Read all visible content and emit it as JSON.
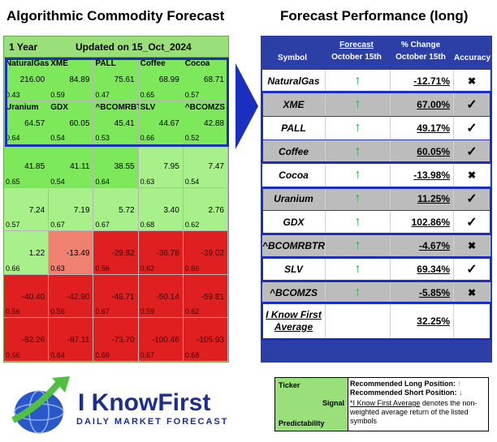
{
  "titles": {
    "left": "Algorithmic Commodity Forecast",
    "right": "Forecast Performance (long)"
  },
  "heatmap": {
    "period": "1 Year",
    "updated": "Updated on 15_Oct_2024",
    "colors": {
      "header": "#99e07a",
      "green_bright": "#7de85a",
      "green_light": "#a8f08a",
      "red": "#e02020",
      "salmon": "#f08070"
    },
    "rows": [
      [
        {
          "symbol": "NaturalGas",
          "value": "216.00",
          "predictability": "0.43",
          "color": "green_bright"
        },
        {
          "symbol": "XME",
          "value": "84.89",
          "predictability": "0.59",
          "color": "green_bright"
        },
        {
          "symbol": "PALL",
          "value": "75.61",
          "predictability": "0.47",
          "color": "green_bright"
        },
        {
          "symbol": "Coffee",
          "value": "68.99",
          "predictability": "0.65",
          "color": "green_bright"
        },
        {
          "symbol": "Cocoa",
          "value": "68.71",
          "predictability": "0.57",
          "color": "green_bright"
        }
      ],
      [
        {
          "symbol": "Uranium",
          "value": "64.57",
          "predictability": "0.64",
          "color": "green_bright"
        },
        {
          "symbol": "GDX",
          "value": "60.05",
          "predictability": "0.54",
          "color": "green_bright"
        },
        {
          "symbol": "^BCOMRBTR",
          "value": "45.41",
          "predictability": "0.53",
          "color": "green_bright"
        },
        {
          "symbol": "SLV",
          "value": "44.67",
          "predictability": "0.66",
          "color": "green_bright"
        },
        {
          "symbol": "^BCOMZS",
          "value": "42.88",
          "predictability": "0.52",
          "color": "green_bright"
        }
      ],
      [
        {
          "symbol": "",
          "value": "41.85",
          "predictability": "0.65",
          "color": "green_bright"
        },
        {
          "symbol": "",
          "value": "41.11",
          "predictability": "0.54",
          "color": "green_bright"
        },
        {
          "symbol": "",
          "value": "38.55",
          "predictability": "0.64",
          "color": "green_bright"
        },
        {
          "symbol": "",
          "value": "7.95",
          "predictability": "0.63",
          "color": "green_light"
        },
        {
          "symbol": "",
          "value": "7.47",
          "predictability": "0.54",
          "color": "green_light"
        }
      ],
      [
        {
          "symbol": "",
          "value": "7.24",
          "predictability": "0.57",
          "color": "green_light"
        },
        {
          "symbol": "",
          "value": "7.19",
          "predictability": "0.67",
          "color": "green_light"
        },
        {
          "symbol": "",
          "value": "5.72",
          "predictability": "0.67",
          "color": "green_light"
        },
        {
          "symbol": "",
          "value": "3.40",
          "predictability": "0.68",
          "color": "green_light"
        },
        {
          "symbol": "",
          "value": "2.76",
          "predictability": "0.62",
          "color": "green_light"
        }
      ],
      [
        {
          "symbol": "",
          "value": "1.22",
          "predictability": "0.66",
          "color": "green_light"
        },
        {
          "symbol": "",
          "value": "-13.49",
          "predictability": "0.63",
          "color": "salmon"
        },
        {
          "symbol": "",
          "value": "-29.82",
          "predictability": "0.56",
          "color": "red"
        },
        {
          "symbol": "",
          "value": "-36.78",
          "predictability": "0.62",
          "color": "red"
        },
        {
          "symbol": "",
          "value": "-39.02",
          "predictability": "0.66",
          "color": "red"
        }
      ],
      [
        {
          "symbol": "",
          "value": "-40.40",
          "predictability": "0.56",
          "color": "red"
        },
        {
          "symbol": "",
          "value": "-42.90",
          "predictability": "0.56",
          "color": "red"
        },
        {
          "symbol": "",
          "value": "-48.71",
          "predictability": "0.67",
          "color": "red"
        },
        {
          "symbol": "",
          "value": "-50.14",
          "predictability": "0.59",
          "color": "red"
        },
        {
          "symbol": "",
          "value": "-59.81",
          "predictability": "0.62",
          "color": "red"
        }
      ],
      [
        {
          "symbol": "",
          "value": "-82.26",
          "predictability": "0.66",
          "color": "red"
        },
        {
          "symbol": "",
          "value": "-87.11",
          "predictability": "0.64",
          "color": "red"
        },
        {
          "symbol": "",
          "value": "-73.70",
          "predictability": "0.69",
          "color": "red"
        },
        {
          "symbol": "",
          "value": "-100.46",
          "predictability": "0.67",
          "color": "red"
        },
        {
          "symbol": "",
          "value": "-105.93",
          "predictability": "0.68",
          "color": "red"
        }
      ]
    ]
  },
  "performance": {
    "headers": {
      "symbol": "Symbol",
      "forecast": "Forecast",
      "forecast_date": "October 15th",
      "change": "% Change",
      "change_date": "October 15th",
      "accuracy": "Accuracy"
    },
    "rows": [
      {
        "symbol": "NaturalGas",
        "direction": "up",
        "change": "-12.71%",
        "accurate": false
      },
      {
        "symbol": "XME",
        "direction": "up",
        "change": "67.00%",
        "accurate": true
      },
      {
        "symbol": "PALL",
        "direction": "up",
        "change": "49.17%",
        "accurate": true
      },
      {
        "symbol": "Coffee",
        "direction": "up",
        "change": "60.05%",
        "accurate": true
      },
      {
        "symbol": "Cocoa",
        "direction": "up",
        "change": "-13.98%",
        "accurate": false
      },
      {
        "symbol": "Uranium",
        "direction": "up",
        "change": "11.25%",
        "accurate": true
      },
      {
        "symbol": "GDX",
        "direction": "up",
        "change": "102.86%",
        "accurate": true
      },
      {
        "symbol": "^BCOMRBTR",
        "direction": "up",
        "change": "-4.67%",
        "accurate": false
      },
      {
        "symbol": "SLV",
        "direction": "up",
        "change": "69.34%",
        "accurate": true
      },
      {
        "symbol": "^BCOMZS",
        "direction": "up",
        "change": "-5.85%",
        "accurate": false
      }
    ],
    "average": {
      "label_line1": "I Know First",
      "label_line2": "Average",
      "change": "32.25%"
    }
  },
  "logo": {
    "brand": "I KnowFirst",
    "tagline": "DAILY MARKET FORECAST"
  },
  "legend": {
    "ticker": "Ticker",
    "signal": "Signal",
    "predictability": "Predictability",
    "long": "Recommended Long Position:",
    "short": "Recommended Short Position:",
    "note_link": "*I Know First Average",
    "note_rest": " denotes the non-weighted average return of the listed symbols"
  }
}
